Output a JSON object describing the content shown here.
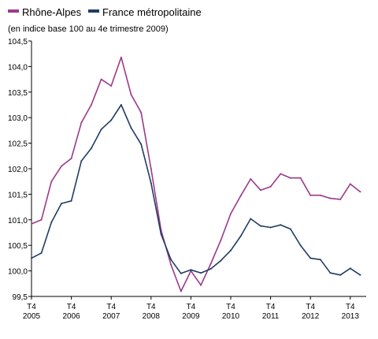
{
  "chart_data": {
    "type": "line",
    "subtitle": "(en indice base 100 au 4e trimestre 2009)",
    "legend_position": "top-left",
    "grid": false,
    "x": [
      "T4 2005",
      "T1 2006",
      "T2 2006",
      "T3 2006",
      "T4 2006",
      "T1 2007",
      "T2 2007",
      "T3 2007",
      "T4 2007",
      "T1 2008",
      "T2 2008",
      "T3 2008",
      "T4 2008",
      "T1 2009",
      "T2 2009",
      "T3 2009",
      "T4 2009",
      "T1 2010",
      "T2 2010",
      "T3 2010",
      "T4 2010",
      "T1 2011",
      "T2 2011",
      "T3 2011",
      "T4 2011",
      "T1 2012",
      "T2 2012",
      "T3 2012",
      "T4 2012",
      "T1 2013",
      "T2 2013",
      "T3 2013",
      "T4 2013",
      "T1 2014"
    ],
    "x_tick_labels": [
      {
        "label": "T4",
        "year": "2005",
        "index": 0
      },
      {
        "label": "T4",
        "year": "2006",
        "index": 4
      },
      {
        "label": "T4",
        "year": "2007",
        "index": 8
      },
      {
        "label": "T4",
        "year": "2008",
        "index": 12
      },
      {
        "label": "T4",
        "year": "2009",
        "index": 16
      },
      {
        "label": "T4",
        "year": "2010",
        "index": 20
      },
      {
        "label": "T4",
        "year": "2011",
        "index": 24
      },
      {
        "label": "T4",
        "year": "2012",
        "index": 28
      },
      {
        "label": "T4",
        "year": "2013",
        "index": 32
      }
    ],
    "ylim": [
      99.5,
      104.5
    ],
    "y_ticks": [
      "99,5",
      "100,0",
      "100,5",
      "101,0",
      "101,5",
      "102,0",
      "102,5",
      "103,0",
      "103,5",
      "104,0",
      "104,5"
    ],
    "series": [
      {
        "name": "Rhône-Alpes",
        "color": "#9c3a8a",
        "values": [
          100.92,
          101.0,
          101.75,
          102.05,
          102.2,
          102.9,
          103.25,
          103.75,
          103.62,
          104.18,
          103.45,
          103.1,
          102.0,
          100.8,
          100.12,
          99.6,
          100.0,
          99.72,
          100.14,
          100.6,
          101.12,
          101.47,
          101.8,
          101.58,
          101.65,
          101.9,
          101.82,
          101.82,
          101.48,
          101.48,
          101.42,
          101.4,
          101.7,
          101.55
        ]
      },
      {
        "name": "France métropolitaine",
        "color": "#1f3d63",
        "values": [
          100.25,
          100.35,
          100.95,
          101.32,
          101.37,
          102.15,
          102.4,
          102.77,
          102.95,
          103.25,
          102.8,
          102.48,
          101.72,
          100.72,
          100.22,
          99.95,
          100.02,
          99.96,
          100.04,
          100.2,
          100.4,
          100.68,
          101.02,
          100.88,
          100.85,
          100.9,
          100.82,
          100.5,
          100.25,
          100.22,
          99.96,
          99.92,
          100.05,
          99.92
        ]
      }
    ]
  }
}
